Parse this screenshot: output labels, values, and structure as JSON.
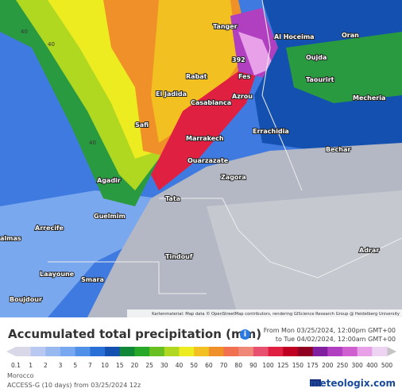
{
  "map": {
    "max_label": "392",
    "grid_labels": [
      "40",
      "40",
      "40"
    ],
    "cities": [
      "Tanger",
      "Al Hoceima",
      "Oran",
      "Oujda",
      "Rabat",
      "Fes",
      "Taourirt",
      "Mecheria",
      "El Jadida",
      "Casablanca",
      "Azrou",
      "Safi",
      "Errachidia",
      "Marrakech",
      "Bechar",
      "Ouarzazate",
      "Zagora",
      "Agadir",
      "Tata",
      "Guelmim",
      "Arrecife",
      "Laayoune",
      "Smara",
      "Tindouf",
      "Boujdour",
      "Adrar",
      "almas"
    ],
    "attribution": "Kartenmaterial: Map data © OpenStreetMap contributors, rendering GIScience Research Group @ Heidelberg University"
  },
  "header": {
    "title": "Accumulated total precipitation (mm)",
    "info": "i",
    "from": "From Mon 03/25/2024, 12:00pm GMT+00",
    "to": "to Tue 04/02/2024, 12:00am GMT+00"
  },
  "legend": {
    "labels": [
      "0.1",
      "1",
      "2",
      "3",
      "5",
      "7",
      "10",
      "15",
      "20",
      "25",
      "30",
      "40",
      "50",
      "60",
      "70",
      "80",
      "90",
      "100",
      "125",
      "150",
      "175",
      "200",
      "250",
      "300",
      "400",
      "500"
    ],
    "low_color": "#d8d8e8",
    "high_color": "#c4c4c4",
    "cell_colors": [
      "#d8d8e8",
      "#b8c8f0",
      "#98b8f0",
      "#78a8f0",
      "#5090e8",
      "#2a6fd8",
      "#1450b0",
      "#108838",
      "#28a828",
      "#68c020",
      "#b0d820",
      "#ecec20",
      "#f2c020",
      "#f09028",
      "#f07050",
      "#f08878",
      "#e85070",
      "#e02040",
      "#c00020",
      "#900020",
      "#8020a0",
      "#b040c0",
      "#d060d0",
      "#e8a0e8",
      "#ecd4f2"
    ]
  },
  "footer": {
    "region": "Morocco",
    "model": "ACCESS-G (10 days) from 03/25/2024 12z",
    "logo": "meteologix.com"
  }
}
